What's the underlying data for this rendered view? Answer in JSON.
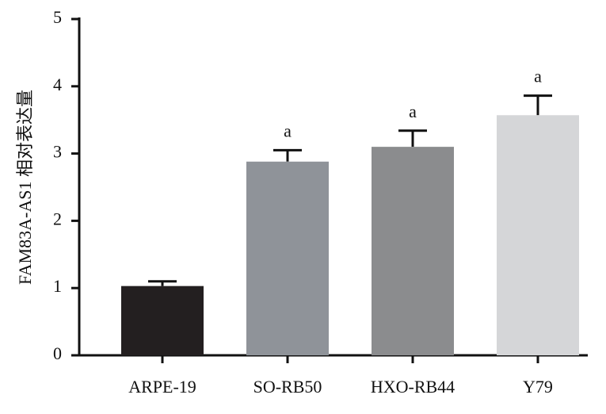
{
  "chart_data": {
    "type": "bar",
    "y_label": "FAM83A-AS1 相对表达量",
    "categories": [
      "ARPE-19",
      "SO-RB50",
      "HXO-RB44",
      "Y79"
    ],
    "values": [
      1.03,
      2.88,
      3.1,
      3.57
    ],
    "errors": [
      0.07,
      0.17,
      0.24,
      0.29
    ],
    "colors": [
      "#231f20",
      "#8f9399",
      "#8b8c8e",
      "#d5d6d8"
    ],
    "annotations": [
      {
        "category": "SO-RB50",
        "text": "a"
      },
      {
        "category": "HXO-RB44",
        "text": "a"
      },
      {
        "category": "Y79",
        "text": "a"
      }
    ],
    "ylim": [
      0,
      5
    ],
    "yticks": [
      0,
      1,
      2,
      3,
      4,
      5
    ],
    "grid": false
  }
}
